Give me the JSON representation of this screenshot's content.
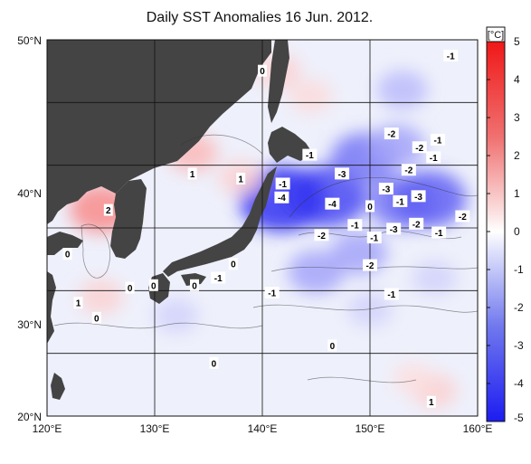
{
  "title": "Daily SST Anomalies 16 Jun. 2012.",
  "colorbar": {
    "unit": "[°C]",
    "min": -5,
    "max": 5,
    "ticks": [
      "5",
      "4",
      "3",
      "2",
      "1",
      "0",
      "-1",
      "-2",
      "-3",
      "-4",
      "-5"
    ],
    "colors": {
      "neg_max": "#1c1cf0",
      "zero": "#ffffff",
      "pos_max": "#f01818"
    }
  },
  "map": {
    "lon_range": [
      120,
      160
    ],
    "lat_range": [
      20,
      50
    ],
    "x_ticks": [
      "120°E",
      "130°E",
      "140°E",
      "150°E",
      "160°E"
    ],
    "y_ticks": [
      "50°N",
      "40°N",
      "30°N",
      "20°N"
    ],
    "grid_lines_lon": [
      130,
      140,
      150
    ],
    "grid_lines_lat": [
      25,
      30,
      35,
      40,
      45
    ],
    "land_color": "#444444",
    "ocean_base_color": "#eef0fb"
  },
  "chart_data": {
    "type": "heatmap",
    "title": "Daily SST Anomalies 16 Jun. 2012.",
    "xlabel": "",
    "ylabel": "",
    "xlim": [
      120,
      160
    ],
    "ylim": [
      20,
      50
    ],
    "units": "°C",
    "contour_labels": [
      {
        "lon": 140.0,
        "lat": 47.5,
        "value": "0"
      },
      {
        "lon": 157.5,
        "lat": 48.7,
        "value": "-1"
      },
      {
        "lon": 152.0,
        "lat": 42.5,
        "value": "-2"
      },
      {
        "lon": 156.3,
        "lat": 42.0,
        "value": "-1"
      },
      {
        "lon": 154.6,
        "lat": 41.4,
        "value": "-2"
      },
      {
        "lon": 155.9,
        "lat": 40.6,
        "value": "-1"
      },
      {
        "lon": 153.6,
        "lat": 39.6,
        "value": "-2"
      },
      {
        "lon": 144.4,
        "lat": 40.8,
        "value": "-1"
      },
      {
        "lon": 147.4,
        "lat": 39.3,
        "value": "-3"
      },
      {
        "lon": 141.9,
        "lat": 38.5,
        "value": "-1"
      },
      {
        "lon": 141.8,
        "lat": 37.4,
        "value": "-4"
      },
      {
        "lon": 146.5,
        "lat": 36.9,
        "value": "-4"
      },
      {
        "lon": 151.5,
        "lat": 38.1,
        "value": "-3"
      },
      {
        "lon": 150.0,
        "lat": 36.7,
        "value": "0"
      },
      {
        "lon": 152.8,
        "lat": 37.1,
        "value": "-1"
      },
      {
        "lon": 154.5,
        "lat": 37.5,
        "value": "-3"
      },
      {
        "lon": 158.6,
        "lat": 35.9,
        "value": "-2"
      },
      {
        "lon": 154.3,
        "lat": 35.3,
        "value": "-2"
      },
      {
        "lon": 152.2,
        "lat": 34.9,
        "value": "-3"
      },
      {
        "lon": 156.4,
        "lat": 34.6,
        "value": "-1"
      },
      {
        "lon": 145.5,
        "lat": 34.4,
        "value": "-2"
      },
      {
        "lon": 148.6,
        "lat": 35.2,
        "value": "-1"
      },
      {
        "lon": 150.4,
        "lat": 34.2,
        "value": "-1"
      },
      {
        "lon": 150.0,
        "lat": 32.0,
        "value": "-2"
      },
      {
        "lon": 152.0,
        "lat": 29.7,
        "value": "-1"
      },
      {
        "lon": 140.9,
        "lat": 29.8,
        "value": "-1"
      },
      {
        "lon": 135.9,
        "lat": 31.0,
        "value": "-1"
      },
      {
        "lon": 137.3,
        "lat": 32.1,
        "value": "0"
      },
      {
        "lon": 133.7,
        "lat": 30.4,
        "value": "0"
      },
      {
        "lon": 129.9,
        "lat": 30.4,
        "value": "0"
      },
      {
        "lon": 127.7,
        "lat": 30.2,
        "value": "0"
      },
      {
        "lon": 121.9,
        "lat": 32.9,
        "value": "0"
      },
      {
        "lon": 124.6,
        "lat": 27.8,
        "value": "0"
      },
      {
        "lon": 122.9,
        "lat": 29.0,
        "value": "1"
      },
      {
        "lon": 125.7,
        "lat": 36.4,
        "value": "2"
      },
      {
        "lon": 133.5,
        "lat": 39.3,
        "value": "1"
      },
      {
        "lon": 138.0,
        "lat": 38.9,
        "value": "1"
      },
      {
        "lon": 135.5,
        "lat": 24.2,
        "value": "0"
      },
      {
        "lon": 146.5,
        "lat": 25.6,
        "value": "0"
      },
      {
        "lon": 155.7,
        "lat": 21.1,
        "value": "1"
      }
    ],
    "anomaly_regions": [
      {
        "lon": 146.0,
        "lat": 37.5,
        "value": -4
      },
      {
        "lon": 141.8,
        "lat": 37.3,
        "value": -4.5
      },
      {
        "lon": 149.5,
        "lat": 40.5,
        "value": -3
      },
      {
        "lon": 153.0,
        "lat": 37.0,
        "value": -3
      },
      {
        "lon": 155.5,
        "lat": 37.3,
        "value": -3.5
      },
      {
        "lon": 152.5,
        "lat": 41.5,
        "value": -2
      },
      {
        "lon": 149.0,
        "lat": 33.0,
        "value": -2
      },
      {
        "lon": 145.0,
        "lat": 31.5,
        "value": -2
      },
      {
        "lon": 153.0,
        "lat": 46.0,
        "value": -1.5
      },
      {
        "lon": 150.0,
        "lat": 28.5,
        "value": -1
      },
      {
        "lon": 156.0,
        "lat": 31.0,
        "value": -1
      },
      {
        "lon": 132.0,
        "lat": 28.0,
        "value": -1
      },
      {
        "lon": 125.0,
        "lat": 36.5,
        "value": 2.5
      },
      {
        "lon": 133.5,
        "lat": 41.0,
        "value": 1.5
      },
      {
        "lon": 138.0,
        "lat": 39.0,
        "value": 1
      },
      {
        "lon": 141.5,
        "lat": 47.5,
        "value": 1
      },
      {
        "lon": 144.5,
        "lat": 45.5,
        "value": 0.8
      },
      {
        "lon": 125.0,
        "lat": 29.5,
        "value": 1
      },
      {
        "lon": 156.0,
        "lat": 22.0,
        "value": 1
      },
      {
        "lon": 154.0,
        "lat": 23.0,
        "value": 0.7
      }
    ]
  }
}
